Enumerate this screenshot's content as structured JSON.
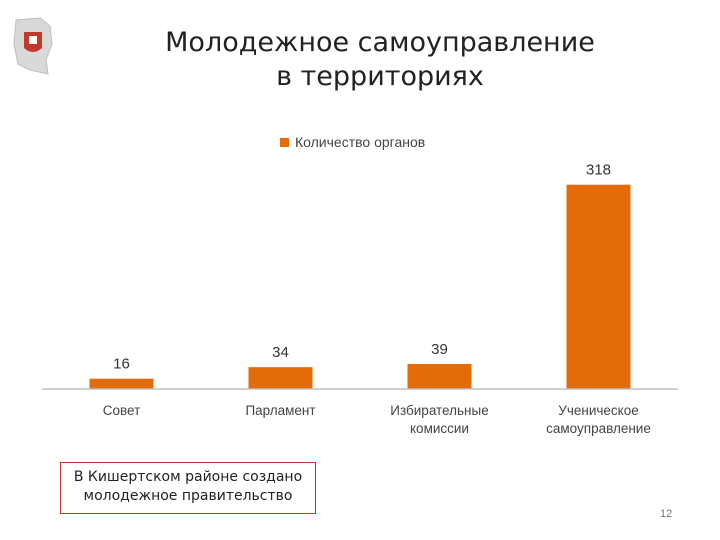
{
  "slide": {
    "title_line1": "Молодежное самоуправление",
    "title_line2": "в территориях",
    "note_line1": "В Кишертском районе создано",
    "note_line2": "молодежное правительство",
    "page_number": "12"
  },
  "colors": {
    "bar": "#e36c09",
    "axis": "#bfbfbf",
    "note_border": "#c0392b"
  },
  "icons": {
    "logo": "perm-krai-coat-of-arms-icon"
  },
  "chart_data": {
    "type": "bar",
    "categories": [
      [
        "Совет"
      ],
      [
        "Парламент"
      ],
      [
        "Избирательные",
        "комиссии"
      ],
      [
        "Ученическое",
        "самоуправление"
      ]
    ],
    "series": [
      {
        "name": "Количество органов",
        "values": [
          16,
          34,
          39,
          318
        ]
      }
    ],
    "ylim": [
      0,
      330
    ],
    "legend": "top",
    "grid": false
  }
}
